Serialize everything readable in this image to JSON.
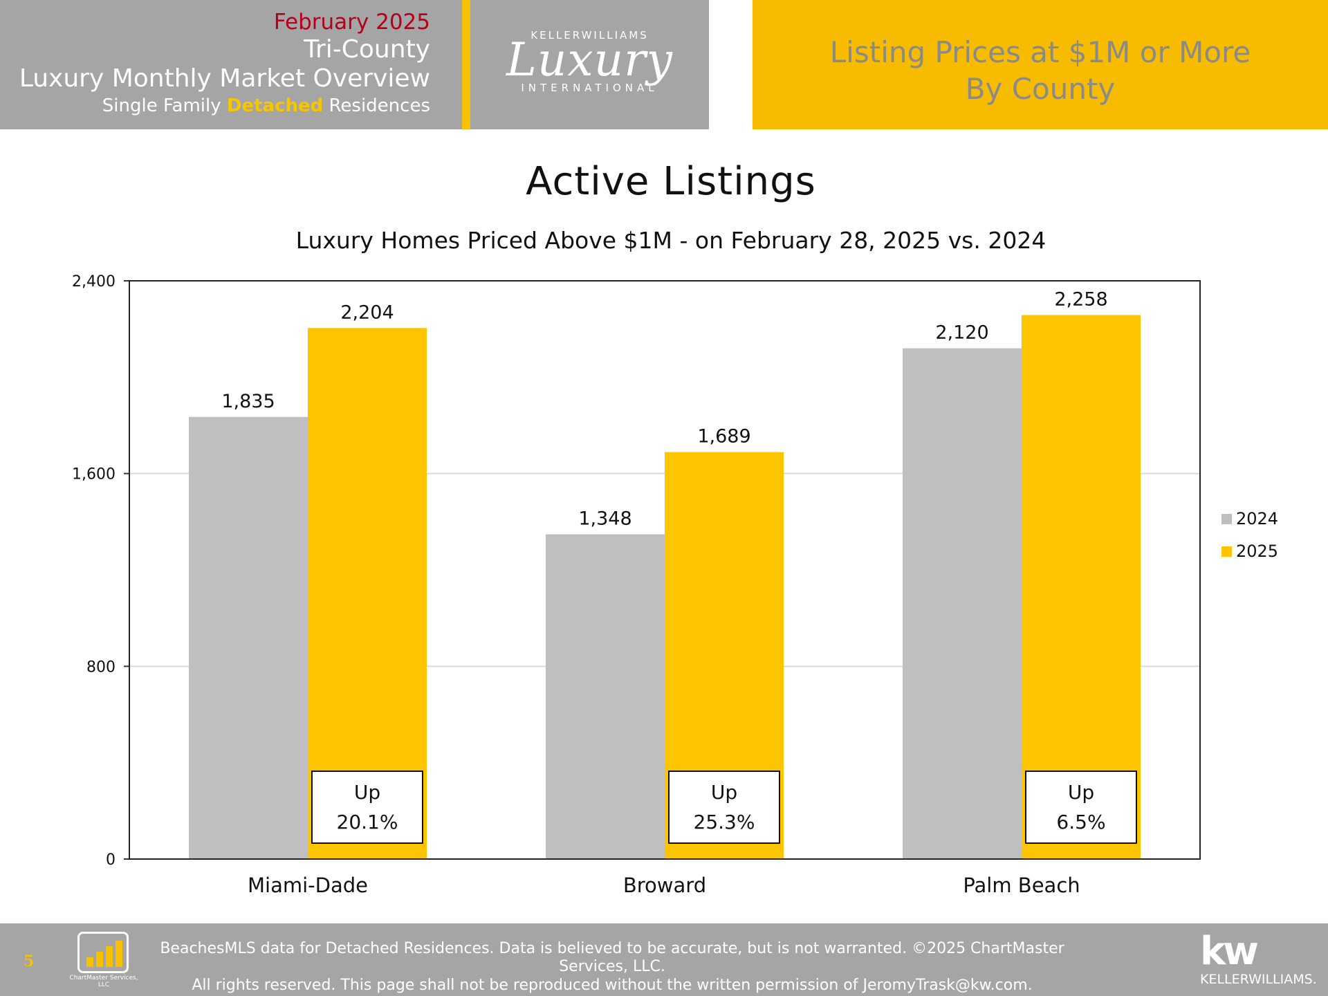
{
  "header": {
    "month": "February 2025",
    "region": "Tri-County",
    "report": "Luxury Monthly Market Overview",
    "sub_prefix": "Single Family ",
    "sub_highlight": "Detached",
    "sub_suffix": " Residences",
    "logo_top": "KELLERWILLIAMS",
    "logo_main": "Luxury",
    "logo_bottom": "INTERNATIONAL",
    "right_line1": "Listing Prices at $1M or More",
    "right_line2": "By County"
  },
  "chart_data": {
    "type": "bar",
    "title": "Active Listings",
    "subtitle": "Luxury Homes Priced Above $1M - on February 28,  2025 vs. 2024",
    "categories": [
      "Miami-Dade",
      "Broward",
      "Palm Beach"
    ],
    "series": [
      {
        "name": "2024",
        "color": "#bfbfbf",
        "values": [
          1835,
          1348,
          2120
        ],
        "labels": [
          "1,835",
          "1,348",
          "2,120"
        ]
      },
      {
        "name": "2025",
        "color": "#fcc500",
        "values": [
          2204,
          1689,
          2258
        ],
        "labels": [
          "2,204",
          "1,689",
          "2,258"
        ]
      }
    ],
    "ylim": [
      0,
      2400
    ],
    "yticks": [
      0,
      800,
      1600,
      2400
    ],
    "ytick_labels": [
      "0",
      "800",
      "1,600",
      "2,400"
    ],
    "grid": true,
    "legend_position": "right",
    "annotations": [
      {
        "line1": "Up",
        "line2": "20.1%"
      },
      {
        "line1": "Up",
        "line2": "25.3%"
      },
      {
        "line1": "Up",
        "line2": "6.5%"
      }
    ]
  },
  "footer": {
    "page_number": "5",
    "logo_text": "ChartMaster Services, LLC",
    "line1": "BeachesMLS data for Detached Residences.  Data is believed to be accurate, but is not warranted.   ©2025  ChartMaster Services, LLC.",
    "line2": "All rights reserved. This page shall not be reproduced without the written permission of JeromyTrask@kw.com.",
    "kw_mark": "kw",
    "kw_name": "KELLERWILLIAMS."
  }
}
